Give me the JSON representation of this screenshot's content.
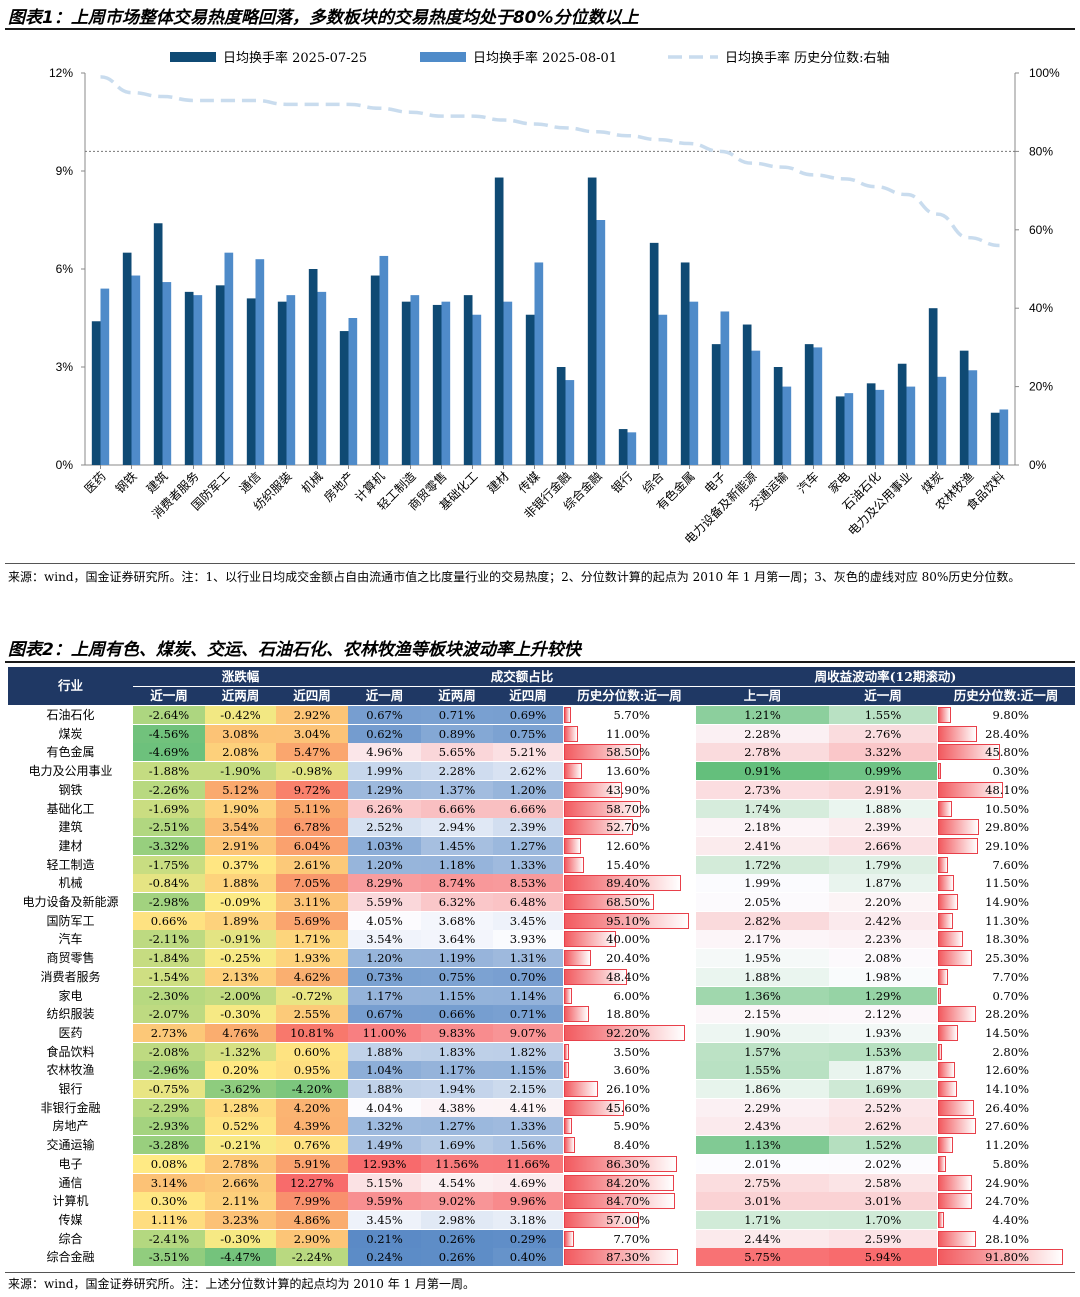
{
  "chart1": {
    "title": "图表1：上周市场整体交易热度略回落，多数板块的交易热度均处于80%分位数以上",
    "legend": [
      "日均换手率 2025-07-25",
      "日均换手率 2025-08-01",
      "日均换手率 历史分位数:右轴"
    ],
    "source": "来源：wind，国金证券研究所。注：1、以行业日均成交金额占自由流通市值之比度量行业的交易热度；2、分位数计算的起点为 2010 年 1 月第一周；3、灰色的虚线对应 80%历史分位数。",
    "colors": {
      "s1": "#0f4a74",
      "s2": "#4f8bc9",
      "s3": "#c9dcee"
    },
    "chart_data": {
      "type": "bar",
      "categories": [
        "医药",
        "钢铁",
        "建筑",
        "消费者服务",
        "国防军工",
        "通信",
        "纺织服装",
        "机械",
        "房地产",
        "计算机",
        "轻工制造",
        "商贸零售",
        "基础化工",
        "建材",
        "传媒",
        "非银行金融",
        "综合金融",
        "银行",
        "综合",
        "有色金属",
        "电子",
        "电力设备及新能源",
        "交通运输",
        "汽车",
        "家电",
        "石油石化",
        "电力及公用事业",
        "煤炭",
        "农林牧渔",
        "食品饮料"
      ],
      "series": [
        {
          "name": "日均换手率 2025-07-25",
          "values": [
            4.4,
            6.5,
            7.4,
            5.3,
            5.5,
            5.1,
            5.0,
            6.0,
            4.1,
            5.8,
            5.0,
            4.9,
            5.2,
            8.8,
            4.6,
            3.0,
            8.8,
            1.1,
            6.8,
            6.2,
            3.7,
            4.3,
            3.0,
            3.7,
            2.1,
            2.5,
            3.1,
            4.8,
            3.5,
            1.6
          ]
        },
        {
          "name": "日均换手率 2025-08-01",
          "values": [
            5.4,
            5.8,
            5.6,
            5.2,
            6.5,
            6.3,
            5.2,
            5.3,
            4.5,
            6.4,
            5.2,
            5.0,
            4.6,
            5.0,
            6.2,
            2.6,
            7.5,
            1.0,
            4.6,
            5.0,
            4.7,
            3.5,
            2.4,
            3.6,
            2.2,
            2.3,
            2.4,
            2.7,
            2.9,
            1.7
          ]
        },
        {
          "name": "日均换手率 历史分位数:右轴",
          "axis": "right",
          "values": [
            99,
            95,
            94,
            93,
            93,
            93,
            92,
            92,
            92,
            91,
            90,
            89,
            89,
            88,
            87,
            86,
            85,
            84,
            83,
            82,
            80,
            77,
            76,
            74,
            73,
            71,
            69,
            64,
            58,
            56
          ]
        }
      ],
      "y_left": {
        "ticks": [
          "0%",
          "3%",
          "6%",
          "9%",
          "12%"
        ],
        "range": [
          0,
          12
        ]
      },
      "y_right": {
        "ticks": [
          "0%",
          "20%",
          "40%",
          "60%",
          "80%",
          "100%"
        ],
        "range": [
          0,
          100
        ]
      },
      "reference_line": 80
    }
  },
  "chart2": {
    "title": "图表2：上周有色、煤炭、交运、石油石化、农林牧渔等板块波动率上升较快",
    "source": "来源：wind，国金证券研究所。注：上述分位数计算的起点均为 2010 年 1 月第一周。",
    "headers": {
      "industry": "行业",
      "g1": "涨跌幅",
      "g2": "成交额占比",
      "g3": "周收益波动率(12期滚动)",
      "cols": [
        "近一周",
        "近两周",
        "近四周",
        "近一周",
        "近两周",
        "近四周",
        "历史分位数:近一周",
        "上一周",
        "近一周",
        "历史分位数:近一周"
      ]
    },
    "rows": [
      [
        "石油石化",
        "-2.64%",
        "-0.42%",
        "2.92%",
        "0.67%",
        "0.71%",
        "0.69%",
        "5.70%",
        "1.21%",
        "1.55%",
        "9.80%"
      ],
      [
        "煤炭",
        "-4.56%",
        "3.08%",
        "3.04%",
        "0.62%",
        "0.89%",
        "0.75%",
        "11.00%",
        "2.28%",
        "2.76%",
        "28.40%"
      ],
      [
        "有色金属",
        "-4.69%",
        "2.08%",
        "5.47%",
        "4.96%",
        "5.65%",
        "5.21%",
        "58.50%",
        "2.78%",
        "3.32%",
        "45.80%"
      ],
      [
        "电力及公用事业",
        "-1.88%",
        "-1.90%",
        "-0.98%",
        "1.99%",
        "2.28%",
        "2.62%",
        "13.60%",
        "0.91%",
        "0.99%",
        "0.30%"
      ],
      [
        "钢铁",
        "-2.26%",
        "5.12%",
        "9.72%",
        "1.29%",
        "1.37%",
        "1.20%",
        "43.90%",
        "2.73%",
        "2.91%",
        "48.10%"
      ],
      [
        "基础化工",
        "-1.69%",
        "1.90%",
        "5.11%",
        "6.26%",
        "6.66%",
        "6.66%",
        "58.70%",
        "1.74%",
        "1.88%",
        "10.50%"
      ],
      [
        "建筑",
        "-2.51%",
        "3.54%",
        "6.78%",
        "2.52%",
        "2.94%",
        "2.39%",
        "52.70%",
        "2.18%",
        "2.39%",
        "29.80%"
      ],
      [
        "建材",
        "-3.32%",
        "2.91%",
        "6.04%",
        "1.03%",
        "1.45%",
        "1.27%",
        "12.60%",
        "2.41%",
        "2.66%",
        "29.10%"
      ],
      [
        "轻工制造",
        "-1.75%",
        "0.37%",
        "2.61%",
        "1.20%",
        "1.18%",
        "1.33%",
        "15.40%",
        "1.72%",
        "1.79%",
        "7.60%"
      ],
      [
        "机械",
        "-0.84%",
        "1.88%",
        "7.05%",
        "8.29%",
        "8.74%",
        "8.53%",
        "89.40%",
        "1.99%",
        "1.87%",
        "11.50%"
      ],
      [
        "电力设备及新能源",
        "-2.98%",
        "-0.09%",
        "3.11%",
        "5.59%",
        "6.32%",
        "6.48%",
        "68.50%",
        "2.05%",
        "2.20%",
        "14.90%"
      ],
      [
        "国防军工",
        "0.66%",
        "1.89%",
        "5.69%",
        "4.05%",
        "3.68%",
        "3.45%",
        "95.10%",
        "2.82%",
        "2.42%",
        "11.30%"
      ],
      [
        "汽车",
        "-2.11%",
        "-0.91%",
        "1.71%",
        "3.54%",
        "3.64%",
        "3.93%",
        "40.00%",
        "2.17%",
        "2.23%",
        "18.30%"
      ],
      [
        "商贸零售",
        "-1.84%",
        "-0.25%",
        "1.93%",
        "1.20%",
        "1.19%",
        "1.31%",
        "20.40%",
        "1.95%",
        "2.08%",
        "25.30%"
      ],
      [
        "消费者服务",
        "-1.54%",
        "2.13%",
        "4.62%",
        "0.73%",
        "0.75%",
        "0.70%",
        "48.40%",
        "1.88%",
        "1.98%",
        "7.70%"
      ],
      [
        "家电",
        "-2.30%",
        "-2.00%",
        "-0.72%",
        "1.17%",
        "1.15%",
        "1.14%",
        "6.00%",
        "1.36%",
        "1.29%",
        "0.70%"
      ],
      [
        "纺织服装",
        "-2.07%",
        "-0.30%",
        "2.55%",
        "0.67%",
        "0.66%",
        "0.71%",
        "18.80%",
        "2.15%",
        "2.12%",
        "28.20%"
      ],
      [
        "医药",
        "2.73%",
        "4.76%",
        "10.81%",
        "11.00%",
        "9.83%",
        "9.07%",
        "92.20%",
        "1.90%",
        "1.93%",
        "14.50%"
      ],
      [
        "食品饮料",
        "-2.08%",
        "-1.32%",
        "0.60%",
        "1.88%",
        "1.83%",
        "1.82%",
        "3.50%",
        "1.57%",
        "1.53%",
        "2.80%"
      ],
      [
        "农林牧渔",
        "-2.96%",
        "0.20%",
        "0.95%",
        "1.04%",
        "1.17%",
        "1.15%",
        "3.60%",
        "1.55%",
        "1.87%",
        "12.60%"
      ],
      [
        "银行",
        "-0.75%",
        "-3.62%",
        "-4.20%",
        "1.88%",
        "1.94%",
        "2.15%",
        "26.10%",
        "1.86%",
        "1.69%",
        "14.10%"
      ],
      [
        "非银行金融",
        "-2.29%",
        "1.28%",
        "4.20%",
        "4.04%",
        "4.38%",
        "4.41%",
        "45.60%",
        "2.29%",
        "2.52%",
        "26.40%"
      ],
      [
        "房地产",
        "-2.93%",
        "0.52%",
        "4.39%",
        "1.32%",
        "1.27%",
        "1.33%",
        "5.90%",
        "2.43%",
        "2.62%",
        "27.60%"
      ],
      [
        "交通运输",
        "-3.28%",
        "-0.21%",
        "0.76%",
        "1.49%",
        "1.69%",
        "1.56%",
        "8.40%",
        "1.13%",
        "1.52%",
        "11.20%"
      ],
      [
        "电子",
        "0.08%",
        "2.78%",
        "5.91%",
        "12.93%",
        "11.56%",
        "11.66%",
        "86.30%",
        "2.01%",
        "2.02%",
        "5.80%"
      ],
      [
        "通信",
        "3.14%",
        "2.66%",
        "12.27%",
        "5.15%",
        "4.54%",
        "4.69%",
        "84.20%",
        "2.75%",
        "2.58%",
        "24.90%"
      ],
      [
        "计算机",
        "0.30%",
        "2.11%",
        "7.99%",
        "9.59%",
        "9.02%",
        "9.96%",
        "84.70%",
        "3.01%",
        "3.01%",
        "24.70%"
      ],
      [
        "传媒",
        "1.11%",
        "3.23%",
        "4.86%",
        "3.45%",
        "2.98%",
        "3.18%",
        "57.00%",
        "1.71%",
        "1.70%",
        "4.40%"
      ],
      [
        "综合",
        "-2.41%",
        "-0.30%",
        "2.90%",
        "0.21%",
        "0.26%",
        "0.29%",
        "7.70%",
        "2.44%",
        "2.59%",
        "28.10%"
      ],
      [
        "综合金融",
        "-3.51%",
        "-4.47%",
        "-2.24%",
        "0.24%",
        "0.26%",
        "0.40%",
        "87.30%",
        "5.75%",
        "5.94%",
        "91.80%"
      ]
    ]
  }
}
